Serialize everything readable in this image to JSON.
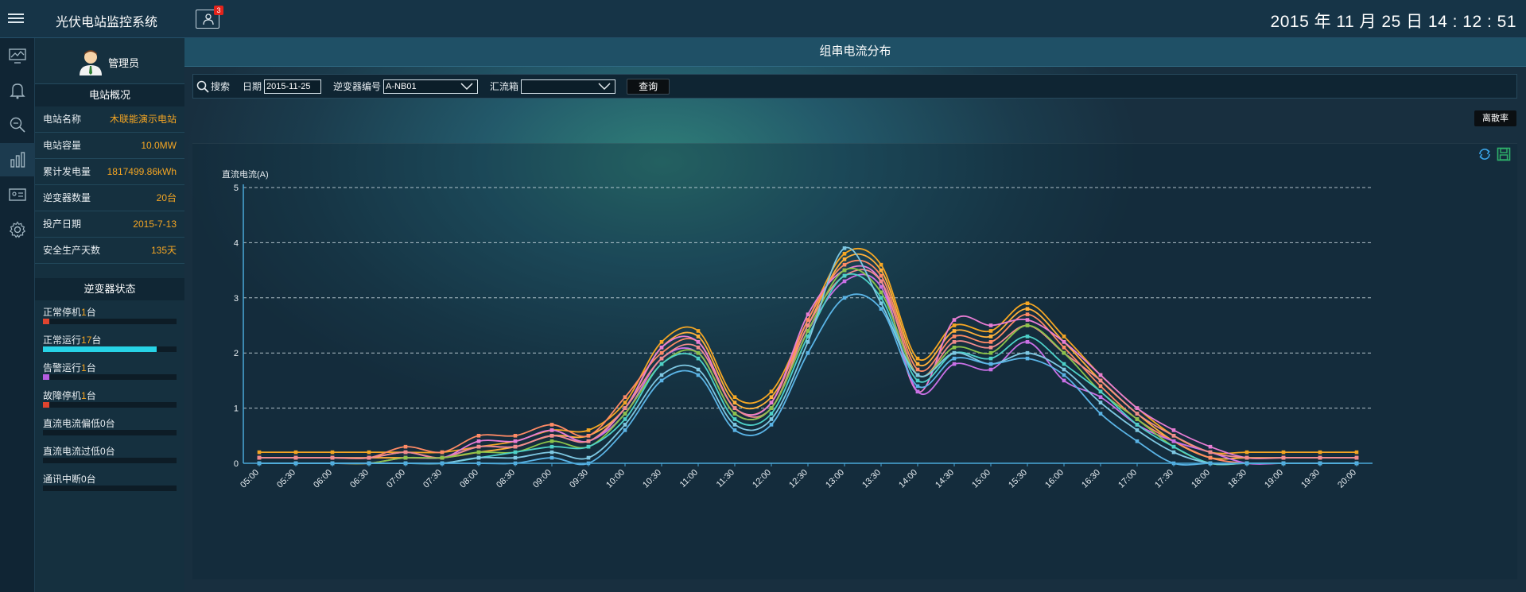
{
  "app": {
    "title": "光伏电站监控系统",
    "notification_count": "3",
    "datetime": "2015 年 11 月 25 日 14 : 12 : 51"
  },
  "iconbar": [
    "monitor-icon",
    "bell-icon",
    "search-zoom-icon",
    "bar-chart-icon",
    "id-card-icon",
    "gear-icon"
  ],
  "user": {
    "name": "管理员"
  },
  "overview": {
    "heading": "电站概况",
    "rows": [
      {
        "label": "电站名称",
        "value": "木联能演示电站"
      },
      {
        "label": "电站容量",
        "value": "10.0MW"
      },
      {
        "label": "累计发电量",
        "value": "1817499.86kWh"
      },
      {
        "label": "逆变器数量",
        "value": "20台"
      },
      {
        "label": "投产日期",
        "value": "2015-7-13"
      },
      {
        "label": "安全生产天数",
        "value": "135天"
      }
    ]
  },
  "inverter_status": {
    "heading": "逆变器状态",
    "items": [
      {
        "pre": "正常停机",
        "num": "1",
        "post": "台",
        "fraction": 0.05,
        "color": "#e0442f"
      },
      {
        "pre": "正常运行",
        "num": "17",
        "post": "台",
        "fraction": 0.85,
        "color": "#27d3e6"
      },
      {
        "pre": "告警运行",
        "num": "1",
        "post": "台",
        "fraction": 0.05,
        "color": "#b45ce0"
      },
      {
        "pre": "故障停机",
        "num": "1",
        "post": "台",
        "fraction": 0.05,
        "color": "#e0442f"
      },
      {
        "pre": "直流电流偏低0台",
        "num": "",
        "post": "",
        "fraction": 0,
        "color": "#27d3e6"
      },
      {
        "pre": "直流电流过低0台",
        "num": "",
        "post": "",
        "fraction": 0,
        "color": "#27d3e6"
      },
      {
        "pre": "通讯中断0台",
        "num": "",
        "post": "",
        "fraction": 0,
        "color": "#27d3e6"
      }
    ]
  },
  "page": {
    "title": "组串电流分布"
  },
  "toolbar": {
    "search_label": "搜索",
    "date_label": "日期",
    "date_value": "2015-11-25",
    "inverter_label": "逆变器编号",
    "inverter_value": "A-NB01",
    "combiner_label": "汇流箱",
    "combiner_value": "",
    "query_label": "查询",
    "dispersion_label": "离散率"
  },
  "chart_data": {
    "type": "line",
    "ylabel": "直流电流(A)",
    "ylim": [
      0,
      5
    ],
    "yticks": [
      0,
      1,
      2,
      3,
      4,
      5
    ],
    "grid": "horizontal dashed",
    "x": [
      "05:00",
      "05:30",
      "06:00",
      "06:30",
      "07:00",
      "07:30",
      "08:00",
      "08:30",
      "09:00",
      "09:30",
      "10:00",
      "10:30",
      "11:00",
      "11:30",
      "12:00",
      "12:30",
      "13:00",
      "13:30",
      "14:00",
      "14:30",
      "15:00",
      "15:30",
      "16:00",
      "16:30",
      "17:00",
      "17:30",
      "18:00",
      "18:30",
      "19:00",
      "19:30",
      "20:00"
    ],
    "series": [
      {
        "color": "#f5a623",
        "values": [
          0.2,
          0.2,
          0.2,
          0.2,
          0.2,
          0.2,
          0.3,
          0.4,
          0.6,
          0.6,
          1.1,
          2.2,
          2.4,
          1.2,
          1.3,
          2.6,
          3.8,
          3.6,
          1.9,
          2.5,
          2.4,
          2.9,
          2.3,
          1.6,
          1.0,
          0.5,
          0.2,
          0.2,
          0.2,
          0.2,
          0.2
        ]
      },
      {
        "color": "#ffb13b",
        "values": [
          0.1,
          0.1,
          0.1,
          0.1,
          0.1,
          0.1,
          0.2,
          0.3,
          0.5,
          0.5,
          1.0,
          2.1,
          2.3,
          1.1,
          1.2,
          2.5,
          3.7,
          3.5,
          1.8,
          2.4,
          2.3,
          2.8,
          2.2,
          1.5,
          0.9,
          0.4,
          0.1,
          0.1,
          0.1,
          0.1,
          0.1
        ]
      },
      {
        "color": "#ff8a65",
        "values": [
          0.1,
          0.1,
          0.1,
          0.1,
          0.3,
          0.2,
          0.5,
          0.5,
          0.7,
          0.5,
          1.2,
          2.0,
          2.2,
          1.0,
          1.1,
          2.6,
          3.6,
          3.4,
          1.7,
          2.3,
          2.2,
          2.7,
          2.1,
          1.4,
          0.8,
          0.4,
          0.1,
          0.0,
          0.0,
          0.0,
          0.0
        ]
      },
      {
        "color": "#e87dd4",
        "values": [
          0.1,
          0.1,
          0.1,
          0.1,
          0.2,
          0.1,
          0.4,
          0.4,
          0.6,
          0.4,
          1.0,
          2.1,
          2.2,
          1.0,
          1.1,
          2.7,
          3.5,
          3.3,
          1.3,
          2.6,
          2.5,
          2.6,
          2.2,
          1.6,
          1.0,
          0.6,
          0.3,
          0.1,
          0.1,
          0.1,
          0.1
        ]
      },
      {
        "color": "#c970e6",
        "values": [
          0.0,
          0.0,
          0.0,
          0.0,
          0.1,
          0.1,
          0.3,
          0.3,
          0.5,
          0.4,
          0.9,
          1.9,
          2.0,
          0.9,
          1.0,
          2.4,
          3.3,
          3.2,
          1.3,
          1.8,
          1.7,
          2.2,
          1.5,
          1.2,
          0.7,
          0.4,
          0.2,
          0.0,
          0.0,
          0.0,
          0.0
        ]
      },
      {
        "color": "#f08c8c",
        "values": [
          0.1,
          0.1,
          0.1,
          0.1,
          0.2,
          0.1,
          0.3,
          0.3,
          0.5,
          0.4,
          1.0,
          1.9,
          2.1,
          1.0,
          1.0,
          2.5,
          3.4,
          3.3,
          1.6,
          2.2,
          2.1,
          2.5,
          2.0,
          1.5,
          0.9,
          0.5,
          0.2,
          0.1,
          0.1,
          0.1,
          0.1
        ]
      },
      {
        "color": "#8bc34a",
        "values": [
          0.0,
          0.0,
          0.0,
          0.0,
          0.1,
          0.1,
          0.2,
          0.2,
          0.4,
          0.3,
          0.9,
          1.8,
          2.0,
          0.9,
          1.0,
          2.4,
          3.5,
          3.1,
          1.6,
          2.1,
          2.0,
          2.5,
          2.0,
          1.3,
          0.8,
          0.3,
          0.0,
          0.0,
          0.0,
          0.0,
          0.0
        ]
      },
      {
        "color": "#4dd0c8",
        "values": [
          0.0,
          0.0,
          0.0,
          0.0,
          0.0,
          0.0,
          0.1,
          0.2,
          0.3,
          0.3,
          0.8,
          1.8,
          1.9,
          0.8,
          0.9,
          2.3,
          3.4,
          3.0,
          1.5,
          2.0,
          1.9,
          2.3,
          1.8,
          1.3,
          0.7,
          0.3,
          0.0,
          0.0,
          0.0,
          0.0,
          0.0
        ]
      },
      {
        "color": "#7ec8e3",
        "values": [
          0.0,
          0.0,
          0.0,
          0.0,
          0.0,
          0.0,
          0.1,
          0.1,
          0.2,
          0.1,
          0.7,
          1.6,
          1.7,
          0.7,
          0.8,
          2.2,
          3.9,
          2.9,
          1.6,
          2.0,
          1.8,
          2.0,
          1.7,
          1.1,
          0.6,
          0.2,
          0.0,
          0.0,
          0.0,
          0.0,
          0.0
        ]
      },
      {
        "color": "#5ab4e6",
        "values": [
          0.0,
          0.0,
          0.0,
          0.0,
          0.0,
          0.0,
          0.0,
          0.0,
          0.1,
          0.0,
          0.6,
          1.5,
          1.6,
          0.6,
          0.7,
          2.0,
          3.0,
          2.8,
          1.4,
          1.9,
          1.8,
          1.9,
          1.6,
          0.9,
          0.4,
          0.0,
          0.0,
          0.0,
          0.0,
          0.0,
          0.0
        ]
      }
    ]
  }
}
